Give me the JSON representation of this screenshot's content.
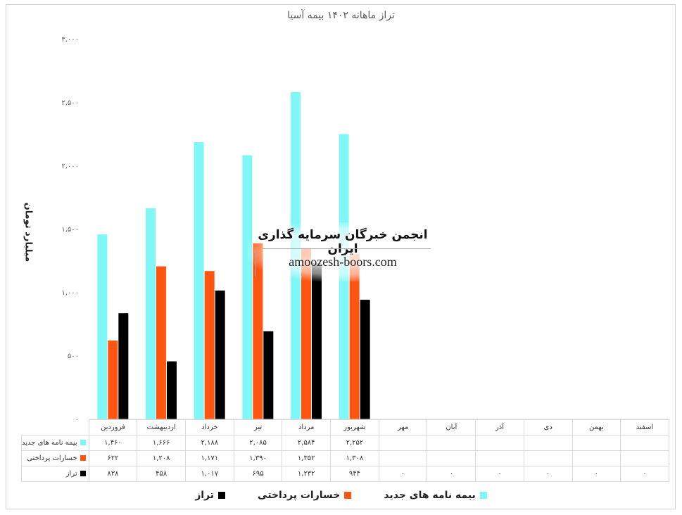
{
  "chart_data": {
    "type": "bar",
    "title": "تراز ماهانه ۱۴۰۲ بیمه آسیا",
    "ylabel": "میلیارد تومان",
    "ylim": [
      0,
      3000
    ],
    "yticks": [
      "۰",
      "۵۰۰",
      "۱,۰۰۰",
      "۱,۵۰۰",
      "۲,۰۰۰",
      "۲,۵۰۰",
      "۳,۰۰۰"
    ],
    "grid": false,
    "legend_position": "bottom",
    "categories": [
      "فروردین",
      "اردیبهشت",
      "خرداد",
      "تیر",
      "مرداد",
      "شهریور",
      "مهر",
      "آبان",
      "آذر",
      "دی",
      "بهمن",
      "اسفند"
    ],
    "series": [
      {
        "name": "بیمه نامه های جدید",
        "color": "#7ff7f7",
        "values": [
          1460,
          1666,
          2188,
          2085,
          2584,
          2252,
          null,
          null,
          null,
          null,
          null,
          null
        ],
        "labels": [
          "۱,۴۶۰",
          "۱,۶۶۶",
          "۲,۱۸۸",
          "۲,۰۸۵",
          "۲,۵۸۴",
          "۲,۲۵۲",
          "",
          "",
          "",
          "",
          "",
          ""
        ]
      },
      {
        "name": "خسارات پرداختی",
        "color": "#ff5511",
        "values": [
          622,
          1208,
          1171,
          1390,
          1352,
          1308,
          null,
          null,
          null,
          null,
          null,
          null
        ],
        "labels": [
          "۶۲۲",
          "۱,۲۰۸",
          "۱,۱۷۱",
          "۱,۳۹۰",
          "۱,۳۵۲",
          "۱,۳۰۸",
          "",
          "",
          "",
          "",
          "",
          ""
        ]
      },
      {
        "name": "تراز",
        "color": "#000000",
        "values": [
          838,
          458,
          1017,
          695,
          1232,
          944,
          0,
          0,
          0,
          0,
          0,
          0
        ],
        "labels": [
          "۸۳۸",
          "۴۵۸",
          "۱,۰۱۷",
          "۶۹۵",
          "۱,۲۳۲",
          "۹۴۴",
          "۰",
          "۰",
          "۰",
          "۰",
          "۰",
          "۰"
        ]
      }
    ]
  },
  "legend": {
    "items": [
      {
        "label": "بیمه نامه های جدید",
        "color": "#7ff7f7"
      },
      {
        "label": "خسارات پرداختی",
        "color": "#ff5511"
      },
      {
        "label": "تراز",
        "color": "#000000"
      }
    ]
  },
  "watermark": {
    "line1": "انجمن خبرگان سرمایه گذاری ایران",
    "line2": "amoozesh-boors.com"
  }
}
